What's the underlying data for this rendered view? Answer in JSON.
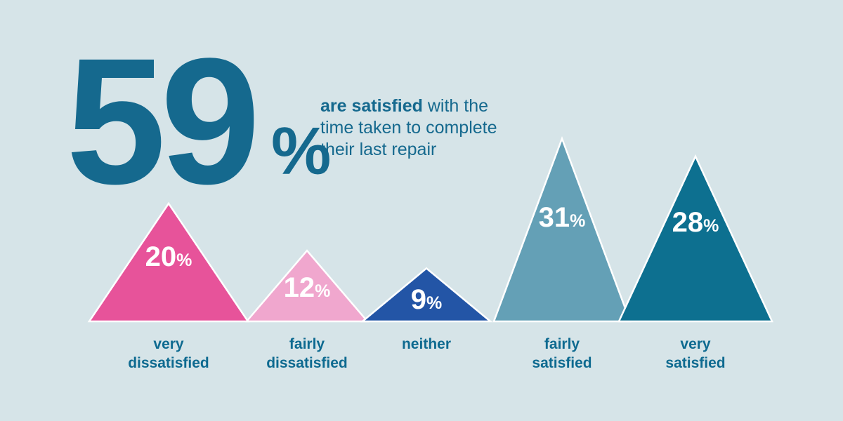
{
  "colors": {
    "background": "#d6e4e8",
    "headline_text": "#15698e"
  },
  "headline": {
    "big_number": "59",
    "percent_sign": "%",
    "emphasis": "are satisfied",
    "rest": " with the time taken to complete their last repair"
  },
  "chart_data": {
    "type": "bar",
    "variant": "triangle-peaks",
    "title": "59% are satisfied with the time taken to complete their last repair",
    "categories": [
      "very dissatisfied",
      "fairly dissatisfied",
      "neither",
      "fairly satisfied",
      "very satisfied"
    ],
    "values": [
      20,
      12,
      9,
      31,
      28
    ],
    "value_suffix": "%",
    "series_colors": [
      "#e7539a",
      "#f0a7ce",
      "#2355a6",
      "#64a0b6",
      "#0d7090"
    ],
    "triangle_outline_color": "#ffffff",
    "value_label_color": "#ffffff",
    "category_label_color": "#0e6a90",
    "ylim": [
      0,
      35
    ],
    "grid": false,
    "legend": "none"
  }
}
